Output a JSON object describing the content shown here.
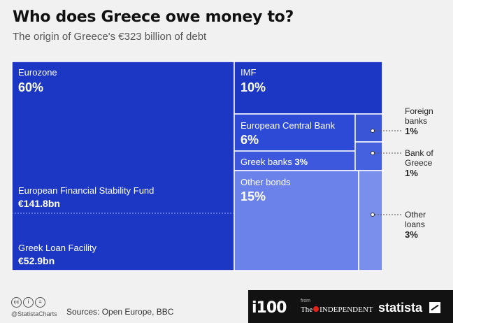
{
  "header": {
    "title": "Who does Greece owe money to?",
    "subtitle": "The origin of Greece's €323 billion of debt"
  },
  "footer": {
    "handle": "@StatistaCharts",
    "sources": "Sources: Open Europe, BBC",
    "brand_i100": "i100",
    "brand_from": "from",
    "brand_independent_pre": "The",
    "brand_independent_post": "INDEPENDENT",
    "brand_statista": "statista",
    "license_icons": [
      "cc-icon",
      "attribution-icon",
      "no-derivatives-icon"
    ]
  },
  "colors": {
    "eurozone": "#1b37c4",
    "imf": "#1b37c4",
    "ecb": "#2d4ad6",
    "greek_banks": "#3d58dc",
    "foreign_banks": "#3a55d6",
    "bank_of_greece": "#4561df",
    "other_bonds": "#6b82ea",
    "other_loans": "#7a8feb",
    "label": "#ffffff",
    "outside_label": "#222222"
  },
  "chart_data": {
    "type": "treemap",
    "title": "Who does Greece owe money to?",
    "subtitle": "The origin of Greece's €323 billion of debt",
    "total_label": "€323 billion",
    "items": [
      {
        "name": "Eurozone",
        "value_label": "60%",
        "value": 60,
        "components": [
          {
            "name": "European Financial Stability Fund",
            "value_label": "€141.8bn",
            "value": 141.8
          },
          {
            "name": "Greek Loan Facility",
            "value_label": "€52.9bn",
            "value": 52.9
          }
        ]
      },
      {
        "name": "IMF",
        "value_label": "10%",
        "value": 10
      },
      {
        "name": "European Central Bank",
        "value_label": "6%",
        "value": 6
      },
      {
        "name": "Greek banks",
        "value_label": "3%",
        "value": 3
      },
      {
        "name": "Foreign banks",
        "value_label": "1%",
        "value": 1,
        "label_outside": true
      },
      {
        "name": "Bank of Greece",
        "value_label": "1%",
        "value": 1,
        "label_outside": true
      },
      {
        "name": "Other bonds",
        "value_label": "15%",
        "value": 15
      },
      {
        "name": "Other loans",
        "value_label": "3%",
        "value": 3,
        "label_outside": true
      }
    ]
  }
}
